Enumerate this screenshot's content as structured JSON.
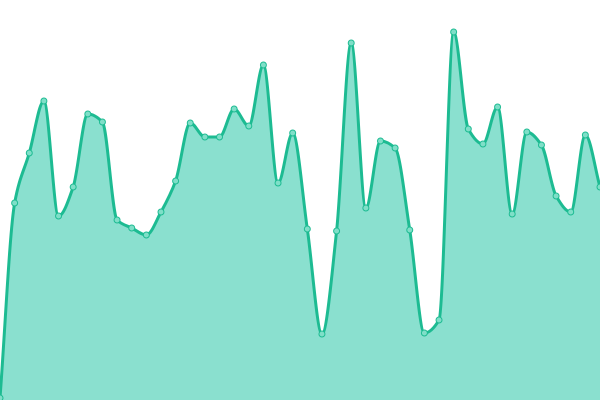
{
  "chart_data": {
    "type": "area",
    "title": "",
    "xlabel": "",
    "ylabel": "",
    "ylim": [
      0,
      400
    ],
    "grid": false,
    "legend": "none",
    "colors": {
      "line": "#1dbb92",
      "fill": "#8ae0cf",
      "point": "#7fdfc8"
    },
    "values": [
      2,
      197,
      247,
      299,
      184,
      213,
      286,
      278,
      180,
      172,
      165,
      188,
      219,
      277,
      263,
      263,
      291,
      274,
      335,
      217,
      267,
      171,
      66,
      169,
      357,
      192,
      259,
      252,
      170,
      67,
      80,
      368,
      271,
      256,
      293,
      186,
      268,
      255,
      204,
      188,
      265,
      213
    ]
  }
}
